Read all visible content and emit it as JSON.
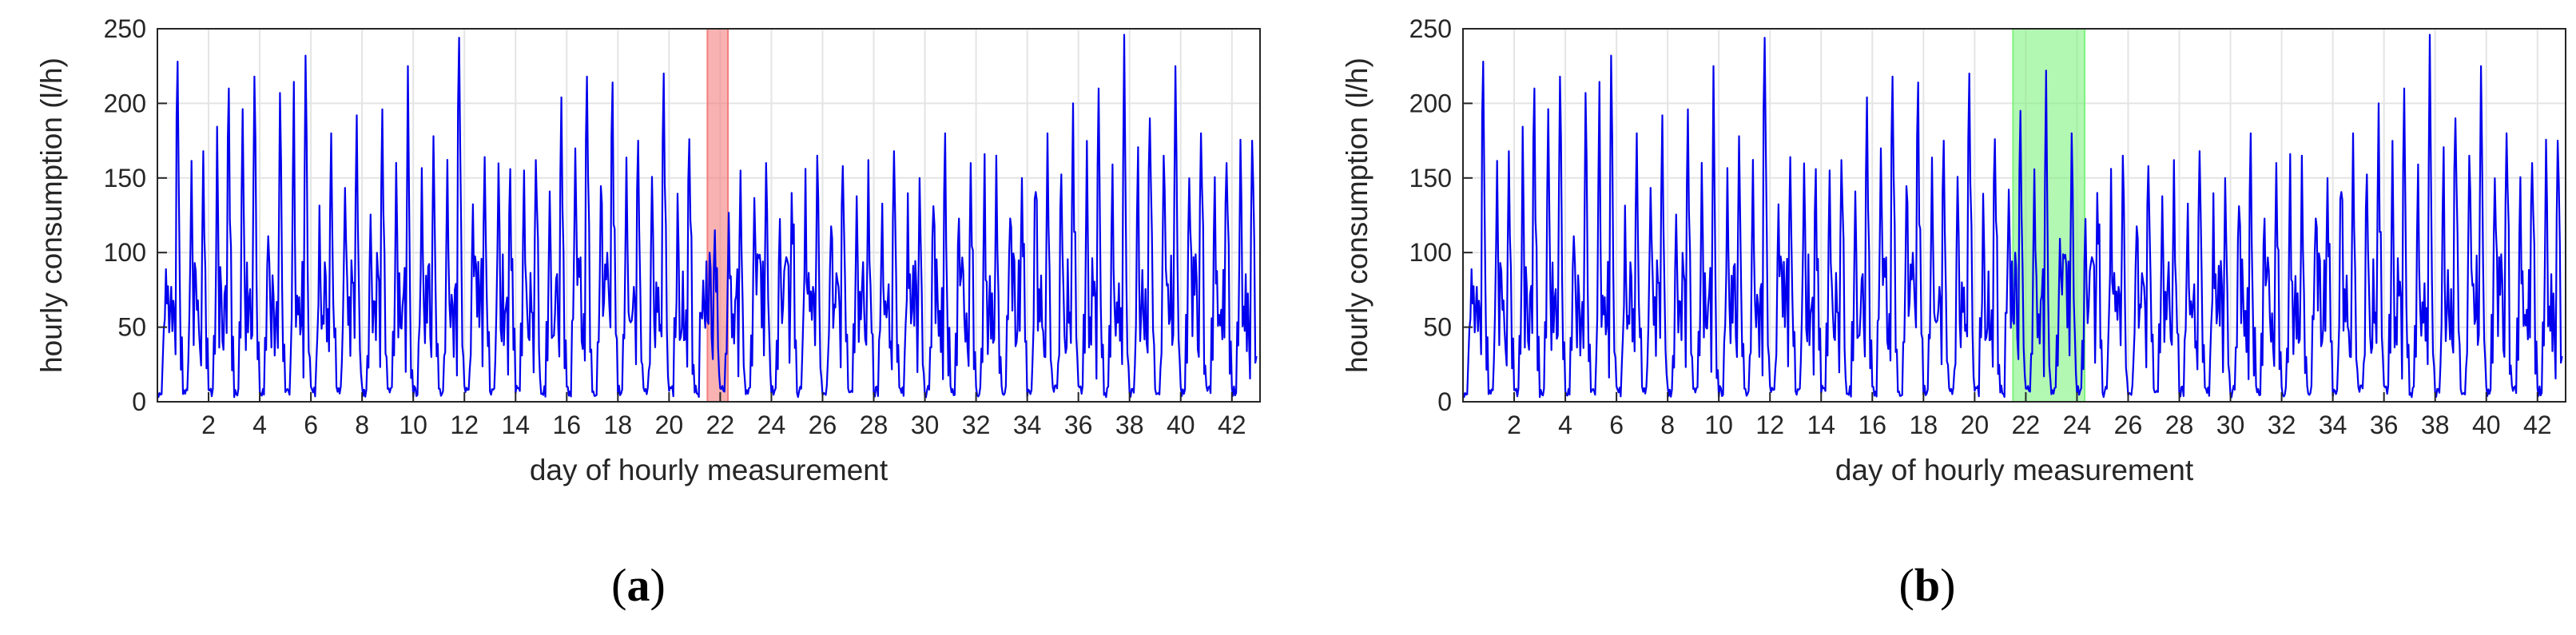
{
  "chart_data": [
    {
      "type": "line",
      "xlabel": "day of hourly measurement",
      "ylabel": "hourly consumption (l/h)",
      "xlim": [
        0,
        43.1
      ],
      "ylim": [
        0,
        250
      ],
      "xticks": [
        2,
        4,
        6,
        8,
        10,
        12,
        14,
        16,
        18,
        20,
        22,
        24,
        26,
        28,
        30,
        32,
        34,
        36,
        38,
        40,
        42
      ],
      "yticks": [
        0,
        50,
        100,
        150,
        200,
        250
      ],
      "grid": true,
      "highlight": {
        "x_start": 21.5,
        "x_end": 22.3,
        "color": "#f47e7e"
      },
      "series": [
        {
          "color": "#0000ee",
          "sampling": "hourly",
          "x_start": 0.0,
          "x_step": 0.0417,
          "daily_peaks": [
            228,
            168,
            210,
            218,
            207,
            232,
            180,
            192,
            196,
            225,
            178,
            244,
            164,
            156,
            162,
            204,
            218,
            214,
            175,
            220,
            176,
            115,
            155,
            160,
            140,
            165,
            158,
            162,
            168,
            150,
            180,
            160,
            165,
            150,
            180,
            200,
            210,
            246,
            190,
            225,
            180,
            160,
            175
          ],
          "daily_secondary": [
            110,
            150,
            175,
            180,
            120,
            210,
            120,
            150,
            135,
            160,
            150,
            170,
            135,
            150,
            160,
            155,
            190,
            170,
            170,
            150,
            130,
            80,
            130,
            150,
            130,
            160,
            140,
            150,
            150,
            135,
            160,
            140,
            155,
            150,
            170,
            185,
            160,
            175,
            160,
            180,
            150,
            140,
            165
          ],
          "night_level": 10
        }
      ]
    },
    {
      "type": "line",
      "xlabel": "day of hourly measurement",
      "ylabel": "hourly consumption (l/h)",
      "xlim": [
        0,
        43.1
      ],
      "ylim": [
        0,
        250
      ],
      "xticks": [
        2,
        4,
        6,
        8,
        10,
        12,
        14,
        16,
        18,
        20,
        22,
        24,
        26,
        28,
        30,
        32,
        34,
        36,
        38,
        40,
        42
      ],
      "yticks": [
        0,
        50,
        100,
        150,
        200,
        250
      ],
      "grid": true,
      "highlight": {
        "x_start": 21.5,
        "x_end": 24.3,
        "color": "#7ff27f"
      },
      "series": [
        {
          "color": "#0000ee",
          "sampling": "hourly",
          "x_start": 0.0,
          "x_step": 0.0417,
          "daily_peaks": [
            228,
            168,
            210,
            218,
            207,
            232,
            180,
            192,
            196,
            225,
            178,
            244,
            164,
            156,
            162,
            204,
            218,
            214,
            175,
            220,
            176,
            195,
            222,
            180,
            140,
            165,
            158,
            162,
            168,
            150,
            180,
            160,
            165,
            150,
            180,
            200,
            210,
            246,
            190,
            225,
            180,
            160,
            175
          ],
          "daily_secondary": [
            110,
            150,
            175,
            180,
            120,
            210,
            120,
            150,
            135,
            160,
            150,
            170,
            135,
            150,
            160,
            155,
            190,
            170,
            170,
            150,
            130,
            140,
            160,
            120,
            130,
            160,
            140,
            150,
            150,
            135,
            160,
            140,
            155,
            150,
            170,
            185,
            160,
            175,
            160,
            180,
            150,
            140,
            165
          ],
          "night_level": 10
        }
      ]
    }
  ],
  "labels": {
    "panel_a": "a",
    "panel_b": "b",
    "paren_open": "(",
    "paren_close": ")"
  }
}
